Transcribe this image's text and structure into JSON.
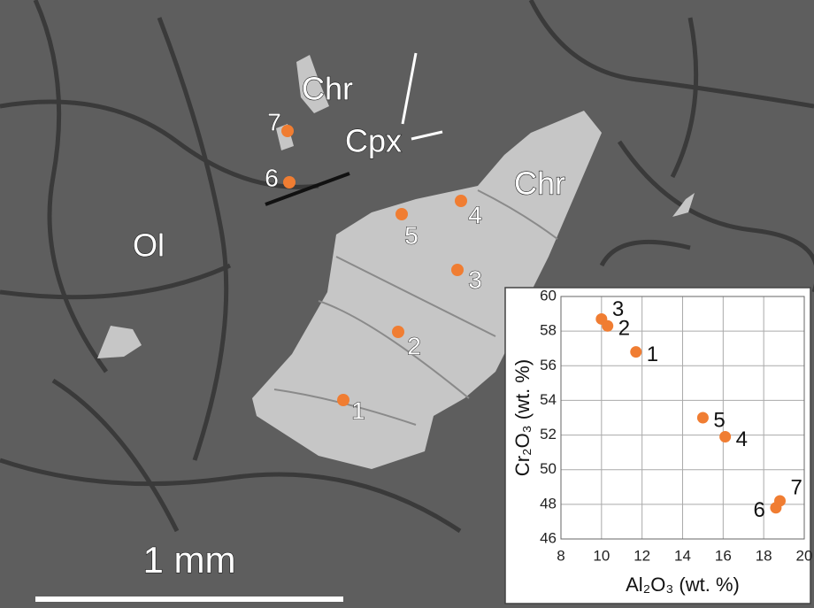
{
  "image": {
    "phase_labels": [
      "Chr",
      "Cpx",
      "Chr",
      "Ol"
    ],
    "point_labels": [
      "1",
      "2",
      "3",
      "4",
      "5",
      "6",
      "7"
    ],
    "scale_bar": "1 mm"
  },
  "chart_data": {
    "type": "scatter",
    "x_label": "Al₂O₃ (wt. %)",
    "y_label": "Cr₂O₃ (wt. %)",
    "series": [
      {
        "name": "Chr",
        "color": "#f07d32",
        "x": [
          11.7,
          10.3,
          10.0,
          16.1,
          15.0,
          18.6,
          18.8
        ],
        "values": [
          56.8,
          58.3,
          58.7,
          51.9,
          53.0,
          47.8,
          48.2
        ],
        "labels": [
          "1",
          "2",
          "3",
          "4",
          "5",
          "6",
          "7"
        ]
      }
    ],
    "xlim": [
      8,
      20
    ],
    "xticks": [
      8,
      10,
      12,
      14,
      16,
      18,
      20
    ],
    "ylim": [
      46,
      60
    ],
    "yticks": [
      46,
      48,
      50,
      52,
      54,
      56,
      58,
      60
    ],
    "grid": true
  }
}
